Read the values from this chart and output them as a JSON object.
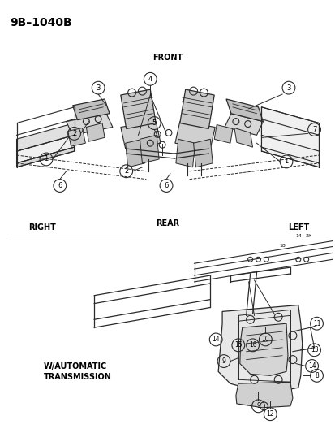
{
  "title": "9B–1040B",
  "background_color": "#ffffff",
  "line_color": "#2a2a2a",
  "text_color": "#000000",
  "fig_width": 4.14,
  "fig_height": 5.33,
  "dpi": 100,
  "labels": {
    "top_left": "9B–1040B",
    "front": "FRONT",
    "rear": "REAR",
    "right": "RIGHT",
    "left": "LEFT",
    "w_auto": "W/AUTOMATIC\nTRANSMISSION"
  }
}
